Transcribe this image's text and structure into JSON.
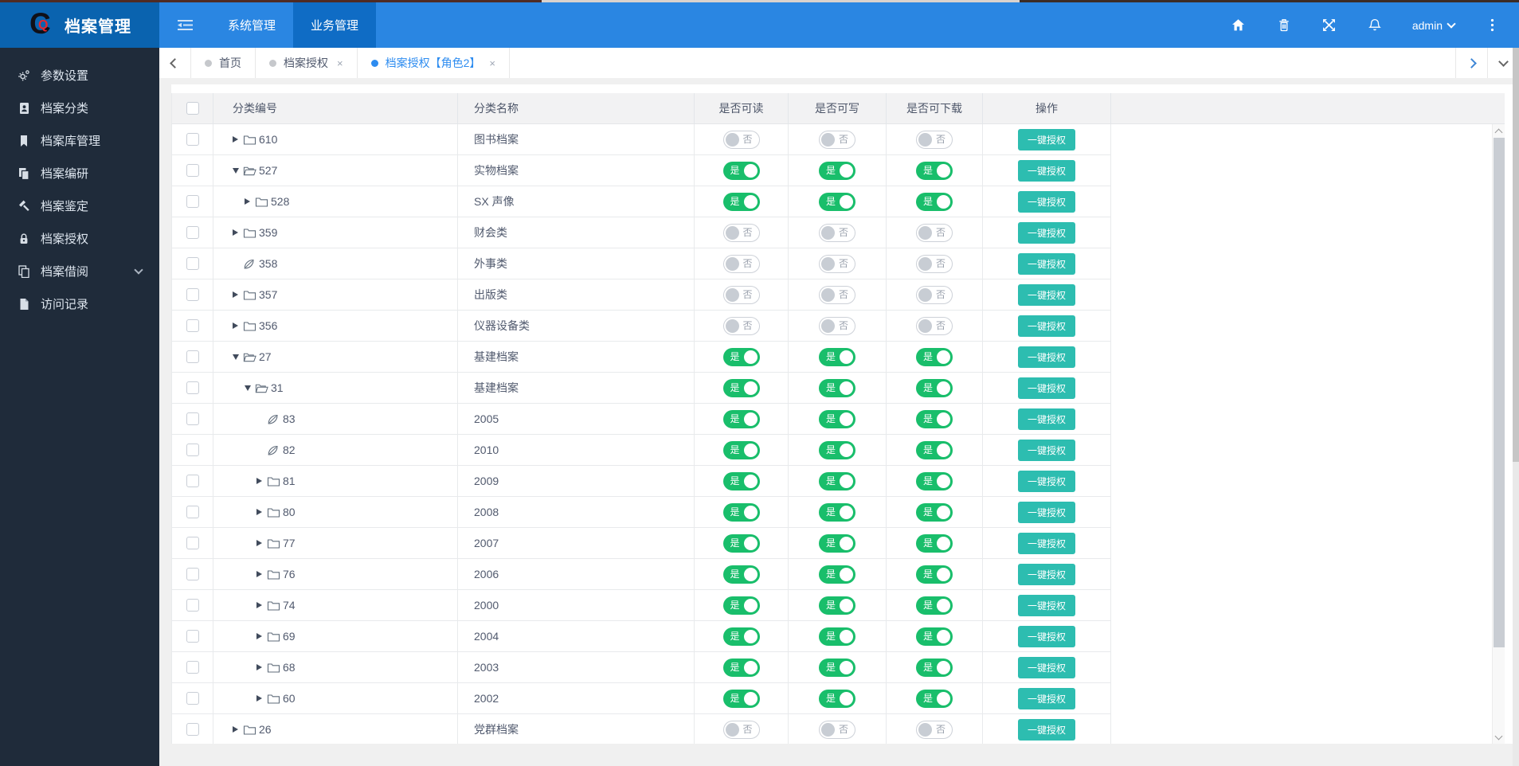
{
  "navbar": {
    "brand": "档案管理",
    "menu_items": [
      {
        "label": "系统管理",
        "active": false
      },
      {
        "label": "业务管理",
        "active": true
      }
    ],
    "username": "admin",
    "right_icons": [
      "home-icon",
      "trash-icon",
      "fullscreen-icon",
      "bell-icon",
      "caret-down-icon",
      "more-vertical-icon"
    ]
  },
  "sidebar": {
    "items": [
      {
        "icon": "cogs",
        "label": "参数设置",
        "expandable": false
      },
      {
        "icon": "id-card",
        "label": "档案分类",
        "expandable": false
      },
      {
        "icon": "bookmark",
        "label": "档案库管理",
        "expandable": false
      },
      {
        "icon": "copy",
        "label": "档案编研",
        "expandable": false
      },
      {
        "icon": "gavel",
        "label": "档案鉴定",
        "expandable": false
      },
      {
        "icon": "lock",
        "label": "档案授权",
        "expandable": false
      },
      {
        "icon": "pages",
        "label": "档案借阅",
        "expandable": true
      },
      {
        "icon": "file",
        "label": "访问记录",
        "expandable": false
      }
    ]
  },
  "tabbar": {
    "tabs": [
      {
        "label": "首页",
        "closable": false,
        "active": false
      },
      {
        "label": "档案授权",
        "closable": true,
        "active": false
      },
      {
        "label": "档案授权【角色2】",
        "closable": true,
        "active": true
      }
    ]
  },
  "table": {
    "headers": [
      {
        "key": "id",
        "label": "分类编号"
      },
      {
        "key": "name",
        "label": "分类名称"
      },
      {
        "key": "read",
        "label": "是否可读"
      },
      {
        "key": "write",
        "label": "是否可写"
      },
      {
        "key": "dl",
        "label": "是否可下载"
      },
      {
        "key": "op",
        "label": "操作"
      }
    ],
    "switch_on_label": "是",
    "switch_off_label": "否",
    "action_label": "一键授权",
    "rows": [
      {
        "id": "610",
        "name": "图书档案",
        "level": 1,
        "node": "collapsed",
        "read": false,
        "write": false,
        "download": false
      },
      {
        "id": "527",
        "name": "实物档案",
        "level": 1,
        "node": "expanded",
        "read": true,
        "write": true,
        "download": true
      },
      {
        "id": "528",
        "name": "SX 声像",
        "level": 2,
        "node": "collapsed",
        "read": true,
        "write": true,
        "download": true
      },
      {
        "id": "359",
        "name": "财会类",
        "level": 1,
        "node": "collapsed",
        "read": false,
        "write": false,
        "download": false
      },
      {
        "id": "358",
        "name": "外事类",
        "level": 1,
        "node": "leaf",
        "read": false,
        "write": false,
        "download": false
      },
      {
        "id": "357",
        "name": "出版类",
        "level": 1,
        "node": "collapsed",
        "read": false,
        "write": false,
        "download": false
      },
      {
        "id": "356",
        "name": "仪器设备类",
        "level": 1,
        "node": "collapsed",
        "read": false,
        "write": false,
        "download": false
      },
      {
        "id": "27",
        "name": "基建档案",
        "level": 1,
        "node": "expanded",
        "read": true,
        "write": true,
        "download": true
      },
      {
        "id": "31",
        "name": "基建档案",
        "level": 2,
        "node": "expanded",
        "read": true,
        "write": true,
        "download": true
      },
      {
        "id": "83",
        "name": "2005",
        "level": 3,
        "node": "leaf",
        "read": true,
        "write": true,
        "download": true
      },
      {
        "id": "82",
        "name": "2010",
        "level": 3,
        "node": "leaf",
        "read": true,
        "write": true,
        "download": true
      },
      {
        "id": "81",
        "name": "2009",
        "level": 3,
        "node": "collapsed",
        "read": true,
        "write": true,
        "download": true
      },
      {
        "id": "80",
        "name": "2008",
        "level": 3,
        "node": "collapsed",
        "read": true,
        "write": true,
        "download": true
      },
      {
        "id": "77",
        "name": "2007",
        "level": 3,
        "node": "collapsed",
        "read": true,
        "write": true,
        "download": true
      },
      {
        "id": "76",
        "name": "2006",
        "level": 3,
        "node": "collapsed",
        "read": true,
        "write": true,
        "download": true
      },
      {
        "id": "74",
        "name": "2000",
        "level": 3,
        "node": "collapsed",
        "read": true,
        "write": true,
        "download": true
      },
      {
        "id": "69",
        "name": "2004",
        "level": 3,
        "node": "collapsed",
        "read": true,
        "write": true,
        "download": true
      },
      {
        "id": "68",
        "name": "2003",
        "level": 3,
        "node": "collapsed",
        "read": true,
        "write": true,
        "download": true
      },
      {
        "id": "60",
        "name": "2002",
        "level": 3,
        "node": "collapsed",
        "read": true,
        "write": true,
        "download": true
      },
      {
        "id": "26",
        "name": "党群档案",
        "level": 1,
        "node": "collapsed",
        "read": false,
        "write": false,
        "download": false
      }
    ]
  },
  "colors": {
    "navbar": "#2a86e2",
    "navbar_active_item": "#0f6cc5",
    "brand_bg": "#0a63af",
    "sidebar_bg": "#1f2b3a",
    "accent": "#2d8cf0",
    "switch_on": "#19be6b",
    "action_button": "#2dbdb0",
    "content_bg": "#f0f0f0"
  }
}
